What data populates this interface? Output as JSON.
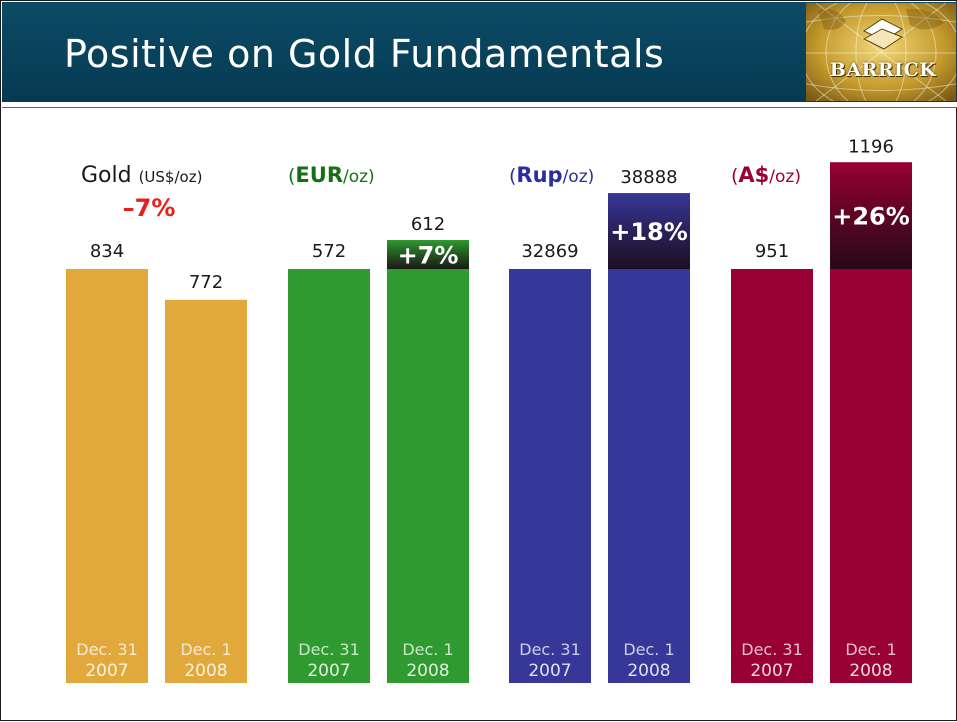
{
  "slide": {
    "title": "Positive on Gold Fundamentals",
    "logo_text": "BARRICK"
  },
  "chart_data": {
    "type": "bar",
    "title": "Positive on Gold Fundamentals",
    "groups": [
      {
        "label_main": "Gold",
        "label_unit": "(US$/oz)",
        "change": "–7%",
        "color": "#e1a83b",
        "label_color": "#1a1a1a",
        "bars": [
          {
            "value": 834,
            "value_label": "834",
            "date": "Dec. 31",
            "year": "2007"
          },
          {
            "value": 772,
            "value_label": "772",
            "date": "Dec. 1",
            "year": "2008"
          }
        ]
      },
      {
        "label_main": "EUR",
        "label_unit": "/oz",
        "change": "+7%",
        "color": "#2f9a2f",
        "label_color": "#157015",
        "bars": [
          {
            "value": 572,
            "value_label": "572",
            "date": "Dec. 31",
            "year": "2007"
          },
          {
            "value": 612,
            "value_label": "612",
            "date": "Dec. 1",
            "year": "2008"
          }
        ]
      },
      {
        "label_main": "Rup",
        "label_unit": "/oz",
        "change": "+18%",
        "color": "#37379a",
        "label_color": "#2c2c9a",
        "bars": [
          {
            "value": 32869,
            "value_label": "32869",
            "date": "Dec. 31",
            "year": "2007"
          },
          {
            "value": 38888,
            "value_label": "38888",
            "date": "Dec. 1",
            "year": "2008"
          }
        ]
      },
      {
        "label_main": "A$",
        "label_unit": "/oz",
        "change": "+26%",
        "color": "#990033",
        "label_color": "#990033",
        "bars": [
          {
            "value": 951,
            "value_label": "951",
            "date": "Dec. 31",
            "year": "2007"
          },
          {
            "value": 1196,
            "value_label": "1196",
            "date": "Dec. 1",
            "year": "2008"
          }
        ]
      }
    ]
  }
}
